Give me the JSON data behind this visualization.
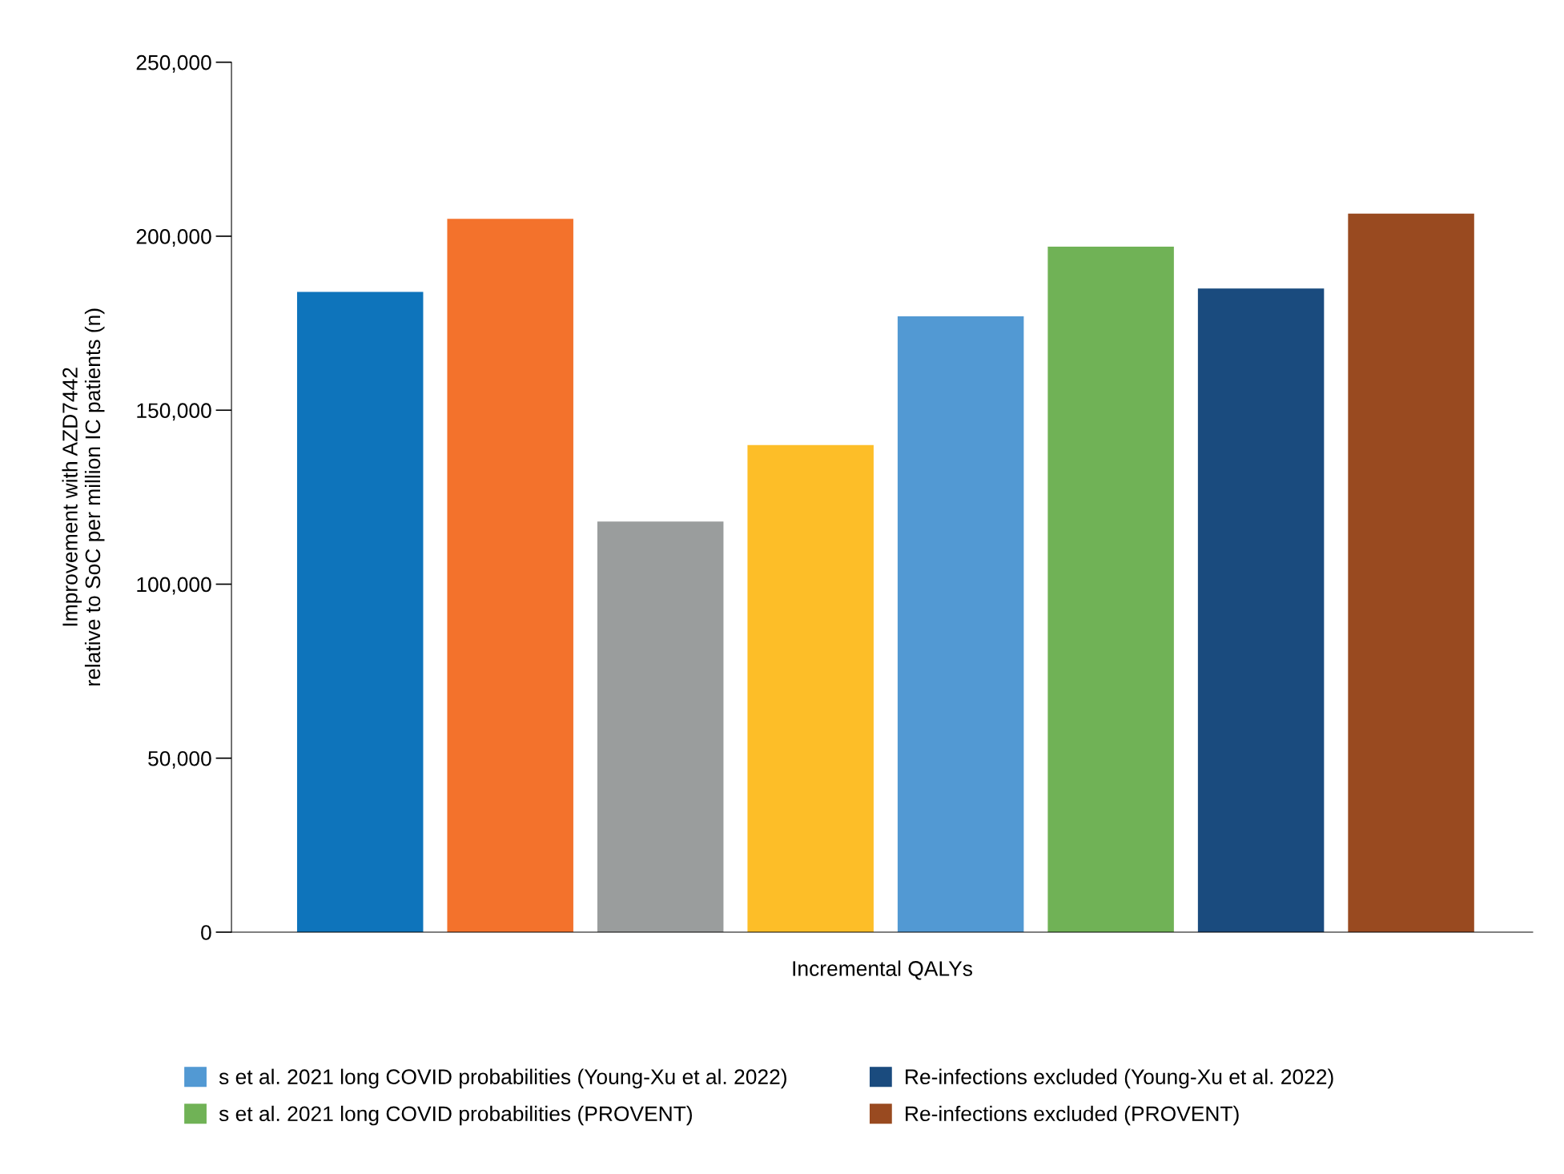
{
  "chart_data": {
    "type": "bar",
    "categories": [
      null,
      null,
      null,
      null,
      null,
      null,
      null,
      null
    ],
    "series": [
      {
        "color": "#0e74bb",
        "values": [
          184000,
          null,
          null,
          null,
          null,
          null,
          null,
          null
        ]
      },
      {
        "color": "#f3722c",
        "values": [
          null,
          205000,
          null,
          null,
          null,
          null,
          null,
          null
        ]
      },
      {
        "color": "#9a9d9d",
        "values": [
          null,
          null,
          118000,
          null,
          null,
          null,
          null,
          null
        ]
      },
      {
        "color": "#fdbe28",
        "values": [
          null,
          null,
          null,
          140000,
          null,
          null,
          null,
          null
        ]
      },
      {
        "name": "s et al. 2021 long COVID probabilities (Young-Xu et al. 2022)",
        "color": "#5299d3",
        "values": [
          null,
          null,
          null,
          null,
          177000,
          null,
          null,
          null
        ]
      },
      {
        "name": "s et al. 2021 long COVID probabilities (PROVENT)",
        "color": "#70b256",
        "values": [
          null,
          null,
          null,
          null,
          null,
          197000,
          null,
          null
        ]
      },
      {
        "name": "Re-infections excluded (Young-Xu et al. 2022)",
        "color": "#1a4b7e",
        "values": [
          null,
          null,
          null,
          null,
          null,
          null,
          185000,
          null
        ]
      },
      {
        "name": "Re-infections excluded (PROVENT)",
        "color": "#994a20",
        "values": [
          null,
          null,
          null,
          null,
          null,
          null,
          null,
          206500
        ]
      }
    ],
    "xlabel": "Incremental QALYs",
    "ylabel": "Improvement with AZD7442\nrelative to SoC per million IC patients (n)",
    "ylim": [
      0,
      250000
    ],
    "yticks": [
      {
        "value": 0,
        "label": "0"
      },
      {
        "value": 50000,
        "label": "50,000"
      },
      {
        "value": 100000,
        "label": "100,000"
      },
      {
        "value": 150000,
        "label": "150,000"
      },
      {
        "value": 200000,
        "label": "200,000"
      },
      {
        "value": 250000,
        "label": "250,000"
      }
    ],
    "grid": false,
    "legend": "bottom"
  }
}
